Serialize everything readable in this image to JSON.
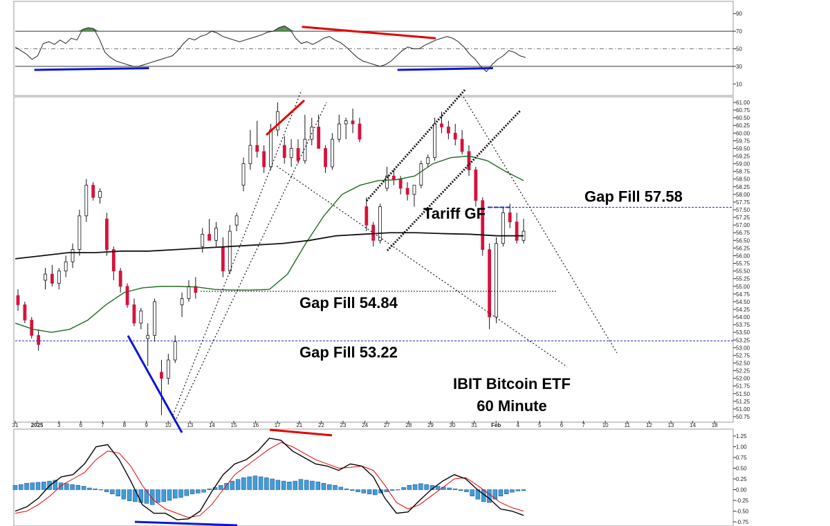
{
  "chart_data": [
    {
      "type": "line",
      "panel": "rsi",
      "ylim": [
        0,
        100
      ],
      "y_ticks": [
        "90",
        "70",
        "50",
        "30",
        "10"
      ],
      "overbought": 70,
      "oversold": 30,
      "midline": 50,
      "rsi_values": [
        52,
        48,
        44,
        38,
        42,
        56,
        58,
        55,
        60,
        56,
        62,
        60,
        72,
        74,
        73,
        61,
        46,
        40,
        36,
        34,
        32,
        30,
        30,
        32,
        34,
        36,
        38,
        40,
        42,
        48,
        56,
        62,
        60,
        64,
        66,
        70,
        68,
        64,
        62,
        60,
        58,
        60,
        62,
        64,
        66,
        69,
        70,
        74,
        76,
        72,
        62,
        56,
        58,
        55,
        58,
        62,
        64,
        60,
        57,
        52,
        46,
        40,
        36,
        34,
        32,
        30,
        32,
        36,
        42,
        48,
        52,
        50,
        50,
        54,
        57,
        60,
        62,
        64,
        62,
        58,
        52,
        44,
        38,
        30,
        24,
        32,
        38,
        42,
        48,
        46,
        42,
        40
      ],
      "divergence_lines": [
        {
          "color": "#e60000",
          "from": [
            15,
            75
          ],
          "to": [
            22,
            62
          ]
        },
        {
          "color": "#0a14d8",
          "from": [
            1,
            26
          ],
          "to": [
            7,
            28
          ]
        },
        {
          "color": "#0a14d8",
          "from": [
            20,
            26
          ],
          "to": [
            25,
            28
          ]
        }
      ],
      "colors": {
        "line": "#222222",
        "fill": "#3f7a3a"
      }
    },
    {
      "type": "candlestick",
      "panel": "price",
      "title": "IBIT Bitcoin ETF",
      "subtitle": "60 Minute",
      "ylim": [
        50.75,
        61.0
      ],
      "y_ticks": [
        "61.00",
        "60.75",
        "60.50",
        "60.25",
        "60.00",
        "59.75",
        "59.50",
        "59.25",
        "59.00",
        "58.75",
        "58.50",
        "58.25",
        "58.00",
        "57.75",
        "57.50",
        "57.25",
        "57.00",
        "56.75",
        "56.50",
        "56.25",
        "56.00",
        "55.75",
        "55.50",
        "55.25",
        "55.00",
        "54.75",
        "54.50",
        "54.25",
        "54.00",
        "53.75",
        "53.50",
        "53.25",
        "53.00",
        "52.75",
        "52.50",
        "52.25",
        "52.00",
        "51.75",
        "51.50",
        "51.25",
        "51.00",
        "50.75"
      ],
      "x_ticks": [
        "31",
        "2025",
        "3",
        "6",
        "7",
        "8",
        "9",
        "10",
        "13",
        "14",
        "15",
        "16",
        "17",
        "21",
        "22",
        "23",
        "24",
        "27",
        "28",
        "29",
        "30",
        "31",
        "Feb",
        "4",
        "5",
        "6",
        "7",
        "10",
        "11",
        "12",
        "13",
        "14",
        "18"
      ],
      "candles": [
        [
          54.7,
          54.9,
          54.2,
          54.4
        ],
        [
          54.4,
          54.5,
          53.8,
          53.9
        ],
        [
          53.9,
          54.0,
          53.3,
          53.4
        ],
        [
          53.4,
          53.6,
          52.9,
          53.1
        ],
        [
          55.2,
          55.6,
          54.9,
          55.4
        ],
        [
          55.4,
          55.7,
          55.0,
          55.1
        ],
        [
          55.1,
          55.6,
          54.9,
          55.5
        ],
        [
          55.5,
          56.0,
          55.3,
          55.8
        ],
        [
          55.8,
          56.4,
          55.6,
          56.2
        ],
        [
          56.2,
          57.5,
          56.0,
          57.3
        ],
        [
          57.3,
          58.5,
          57.1,
          58.3
        ],
        [
          58.3,
          58.4,
          57.8,
          57.9
        ],
        [
          57.9,
          58.2,
          57.7,
          58.1
        ],
        [
          57.2,
          57.4,
          56.0,
          56.2
        ],
        [
          56.2,
          56.3,
          55.2,
          55.5
        ],
        [
          55.5,
          55.6,
          54.8,
          55.0
        ],
        [
          55.0,
          55.1,
          54.3,
          54.4
        ],
        [
          54.4,
          54.6,
          53.7,
          53.8
        ],
        [
          53.8,
          54.3,
          53.6,
          54.2
        ],
        [
          53.3,
          53.8,
          52.4,
          53.4
        ],
        [
          53.4,
          54.6,
          53.2,
          54.5
        ],
        [
          52.2,
          52.6,
          50.8,
          52.0
        ],
        [
          52.0,
          52.8,
          51.8,
          52.6
        ],
        [
          52.6,
          53.4,
          52.5,
          53.2
        ],
        [
          54.4,
          54.8,
          54.0,
          54.6
        ],
        [
          54.6,
          55.2,
          54.5,
          55.0
        ],
        [
          55.0,
          55.3,
          54.6,
          54.8
        ],
        [
          56.3,
          56.9,
          56.1,
          56.7
        ],
        [
          56.7,
          57.2,
          56.5,
          56.5
        ],
        [
          56.5,
          57.1,
          56.3,
          56.9
        ],
        [
          56.3,
          56.6,
          55.3,
          55.5
        ],
        [
          55.5,
          57.0,
          55.4,
          56.8
        ],
        [
          57.0,
          57.4,
          56.8,
          57.3
        ],
        [
          58.3,
          59.2,
          58.1,
          59.0
        ],
        [
          59.0,
          60.1,
          58.8,
          59.6
        ],
        [
          59.6,
          60.4,
          59.2,
          59.4
        ],
        [
          59.4,
          59.6,
          58.7,
          58.9
        ],
        [
          58.9,
          60.3,
          58.8,
          60.1
        ],
        [
          60.1,
          61.0,
          59.9,
          60.7
        ],
        [
          59.6,
          59.9,
          59.0,
          59.2
        ],
        [
          59.2,
          59.8,
          58.9,
          59.5
        ],
        [
          59.5,
          59.8,
          59.0,
          59.1
        ],
        [
          59.1,
          60.6,
          59.0,
          59.8
        ],
        [
          59.8,
          60.5,
          59.6,
          60.2
        ],
        [
          60.2,
          60.6,
          59.6,
          59.5
        ],
        [
          59.5,
          59.6,
          58.7,
          58.9
        ],
        [
          58.9,
          60.0,
          58.8,
          59.8
        ],
        [
          59.8,
          60.6,
          59.7,
          60.3
        ],
        [
          60.3,
          60.5,
          59.8,
          60.4
        ],
        [
          60.4,
          60.8,
          60.0,
          60.3
        ],
        [
          60.3,
          60.5,
          59.7,
          59.8
        ],
        [
          57.6,
          57.9,
          56.8,
          57.0
        ],
        [
          57.0,
          57.1,
          56.3,
          56.5
        ],
        [
          56.5,
          57.7,
          56.4,
          57.6
        ],
        [
          58.2,
          58.9,
          58.1,
          58.6
        ],
        [
          58.6,
          58.8,
          58.3,
          58.5
        ],
        [
          58.5,
          58.6,
          58.0,
          58.2
        ],
        [
          58.2,
          58.4,
          57.8,
          58.0
        ],
        [
          58.0,
          58.3,
          57.6,
          58.3
        ],
        [
          58.3,
          59.1,
          58.2,
          59.0
        ],
        [
          59.0,
          59.3,
          58.9,
          59.2
        ],
        [
          59.2,
          60.5,
          59.1,
          60.3
        ],
        [
          60.3,
          60.7,
          60.0,
          60.2
        ],
        [
          60.2,
          60.4,
          59.8,
          60.0
        ],
        [
          60.0,
          60.3,
          59.6,
          59.8
        ],
        [
          59.8,
          60.1,
          59.3,
          59.4
        ],
        [
          59.4,
          59.6,
          58.6,
          58.8
        ],
        [
          58.8,
          58.9,
          57.6,
          57.8
        ],
        [
          57.8,
          57.9,
          56.0,
          56.2
        ],
        [
          56.2,
          56.4,
          53.6,
          54.0
        ],
        [
          54.0,
          56.6,
          53.8,
          56.4
        ],
        [
          56.4,
          57.6,
          56.3,
          57.4
        ],
        [
          57.4,
          57.7,
          56.9,
          57.1
        ],
        [
          57.1,
          57.4,
          56.4,
          56.5
        ],
        [
          56.5,
          57.2,
          56.4,
          56.8
        ]
      ],
      "ma50_values": [
        53.8,
        53.6,
        53.5,
        53.6,
        53.9,
        54.4,
        54.8,
        54.95,
        55.0,
        55.0,
        54.98,
        54.9,
        54.88,
        54.88,
        54.9,
        55.4,
        56.4,
        57.3,
        58.0,
        58.3,
        58.45,
        58.48,
        58.6,
        59.0,
        59.2,
        59.25,
        59.1,
        58.75,
        58.45
      ],
      "ma200_values": [
        55.9,
        56.0,
        56.1,
        56.1,
        56.15,
        56.15,
        56.2,
        56.25,
        56.3,
        56.35,
        56.4,
        56.5,
        56.65,
        56.7,
        56.75,
        56.75,
        56.72,
        56.7,
        56.65,
        56.65
      ],
      "gap_fills": [
        {
          "label": "Gap Fill 57.58",
          "value": 57.58,
          "style": "blue-dashed"
        },
        {
          "label": "Gap Fill 54.84",
          "value": 54.84,
          "style": "black-dotted"
        },
        {
          "label": "Gap Fill 53.22",
          "value": 53.22,
          "style": "blue-dashed"
        }
      ],
      "annotations": [
        "Tariff GF"
      ],
      "colors": {
        "up": "#ffffff",
        "down": "#d8123c",
        "candle_border": "#111111",
        "ma50": "#1f6b1f",
        "ma200": "#111111",
        "gap_blue": "#1f26d6",
        "blue_line": "#0a14d8",
        "red_line": "#e60000"
      }
    },
    {
      "type": "bar",
      "panel": "macd",
      "ylim": [
        -0.75,
        1.25
      ],
      "y_ticks": [
        "1.25",
        "1.00",
        "0.75",
        "0.50",
        "0.25",
        "0.00",
        "-0.25",
        "-0.50",
        "-0.75"
      ],
      "histogram_values": [
        0.1,
        0.12,
        0.15,
        0.16,
        0.17,
        0.18,
        0.2,
        0.22,
        0.16,
        0.14,
        0.12,
        0.1,
        0.08,
        0.04,
        0.02,
        0.0,
        -0.05,
        -0.1,
        -0.15,
        -0.22,
        -0.26,
        -0.28,
        -0.3,
        -0.32,
        -0.35,
        -0.3,
        -0.28,
        -0.25,
        -0.2,
        -0.18,
        -0.14,
        -0.1,
        -0.08,
        -0.06,
        0.02,
        0.05,
        0.1,
        0.15,
        0.2,
        0.24,
        0.28,
        0.3,
        0.32,
        0.3,
        0.28,
        0.25,
        0.22,
        0.2,
        0.18,
        0.2,
        0.24,
        0.22,
        0.2,
        0.18,
        0.15,
        0.12,
        0.1,
        0.06,
        0.02,
        -0.02,
        -0.05,
        -0.08,
        -0.1,
        -0.12,
        -0.08,
        -0.05,
        -0.02,
        0.0,
        0.05,
        0.1,
        0.12,
        0.14,
        0.12,
        0.1,
        0.08,
        0.06,
        0.04,
        0.02,
        -0.02,
        -0.05,
        -0.15,
        -0.22,
        -0.28,
        -0.3,
        -0.22,
        -0.15,
        -0.1,
        -0.06,
        -0.03,
        -0.02
      ],
      "macd_values": [
        -0.5,
        -0.4,
        -0.2,
        0.1,
        0.3,
        0.35,
        0.6,
        1.0,
        1.05,
        0.7,
        0.2,
        -0.35,
        -0.55,
        -0.55,
        -0.7,
        -0.68,
        -0.5,
        -0.05,
        0.35,
        0.6,
        0.7,
        0.9,
        1.2,
        1.15,
        0.9,
        0.75,
        0.6,
        0.55,
        0.45,
        0.6,
        0.55,
        0.3,
        -0.2,
        -0.55,
        -0.52,
        -0.25,
        0.0,
        0.2,
        0.35,
        0.25,
        0.0,
        -0.2,
        -0.45,
        -0.5,
        -0.6
      ],
      "signal_values": [
        -0.55,
        -0.5,
        -0.35,
        -0.15,
        0.1,
        0.25,
        0.4,
        0.7,
        0.9,
        0.85,
        0.55,
        0.1,
        -0.25,
        -0.45,
        -0.55,
        -0.65,
        -0.6,
        -0.35,
        0.0,
        0.35,
        0.55,
        0.75,
        0.95,
        1.1,
        1.0,
        0.85,
        0.7,
        0.6,
        0.5,
        0.52,
        0.55,
        0.45,
        0.1,
        -0.3,
        -0.45,
        -0.35,
        -0.15,
        0.05,
        0.25,
        0.28,
        0.1,
        -0.1,
        -0.3,
        -0.42,
        -0.5
      ],
      "divergence_lines": [
        {
          "color": "#e60000",
          "from": [
            11,
            1.3
          ],
          "to": [
            14,
            1.2
          ]
        },
        {
          "color": "#0a14d8",
          "from": [
            5,
            -0.72
          ],
          "to": [
            10,
            -0.78
          ]
        }
      ],
      "colors": {
        "hist": "#3f9ed6",
        "hist_border": "#1a3a8a",
        "macd": "#000000",
        "signal": "#e60000"
      }
    }
  ]
}
